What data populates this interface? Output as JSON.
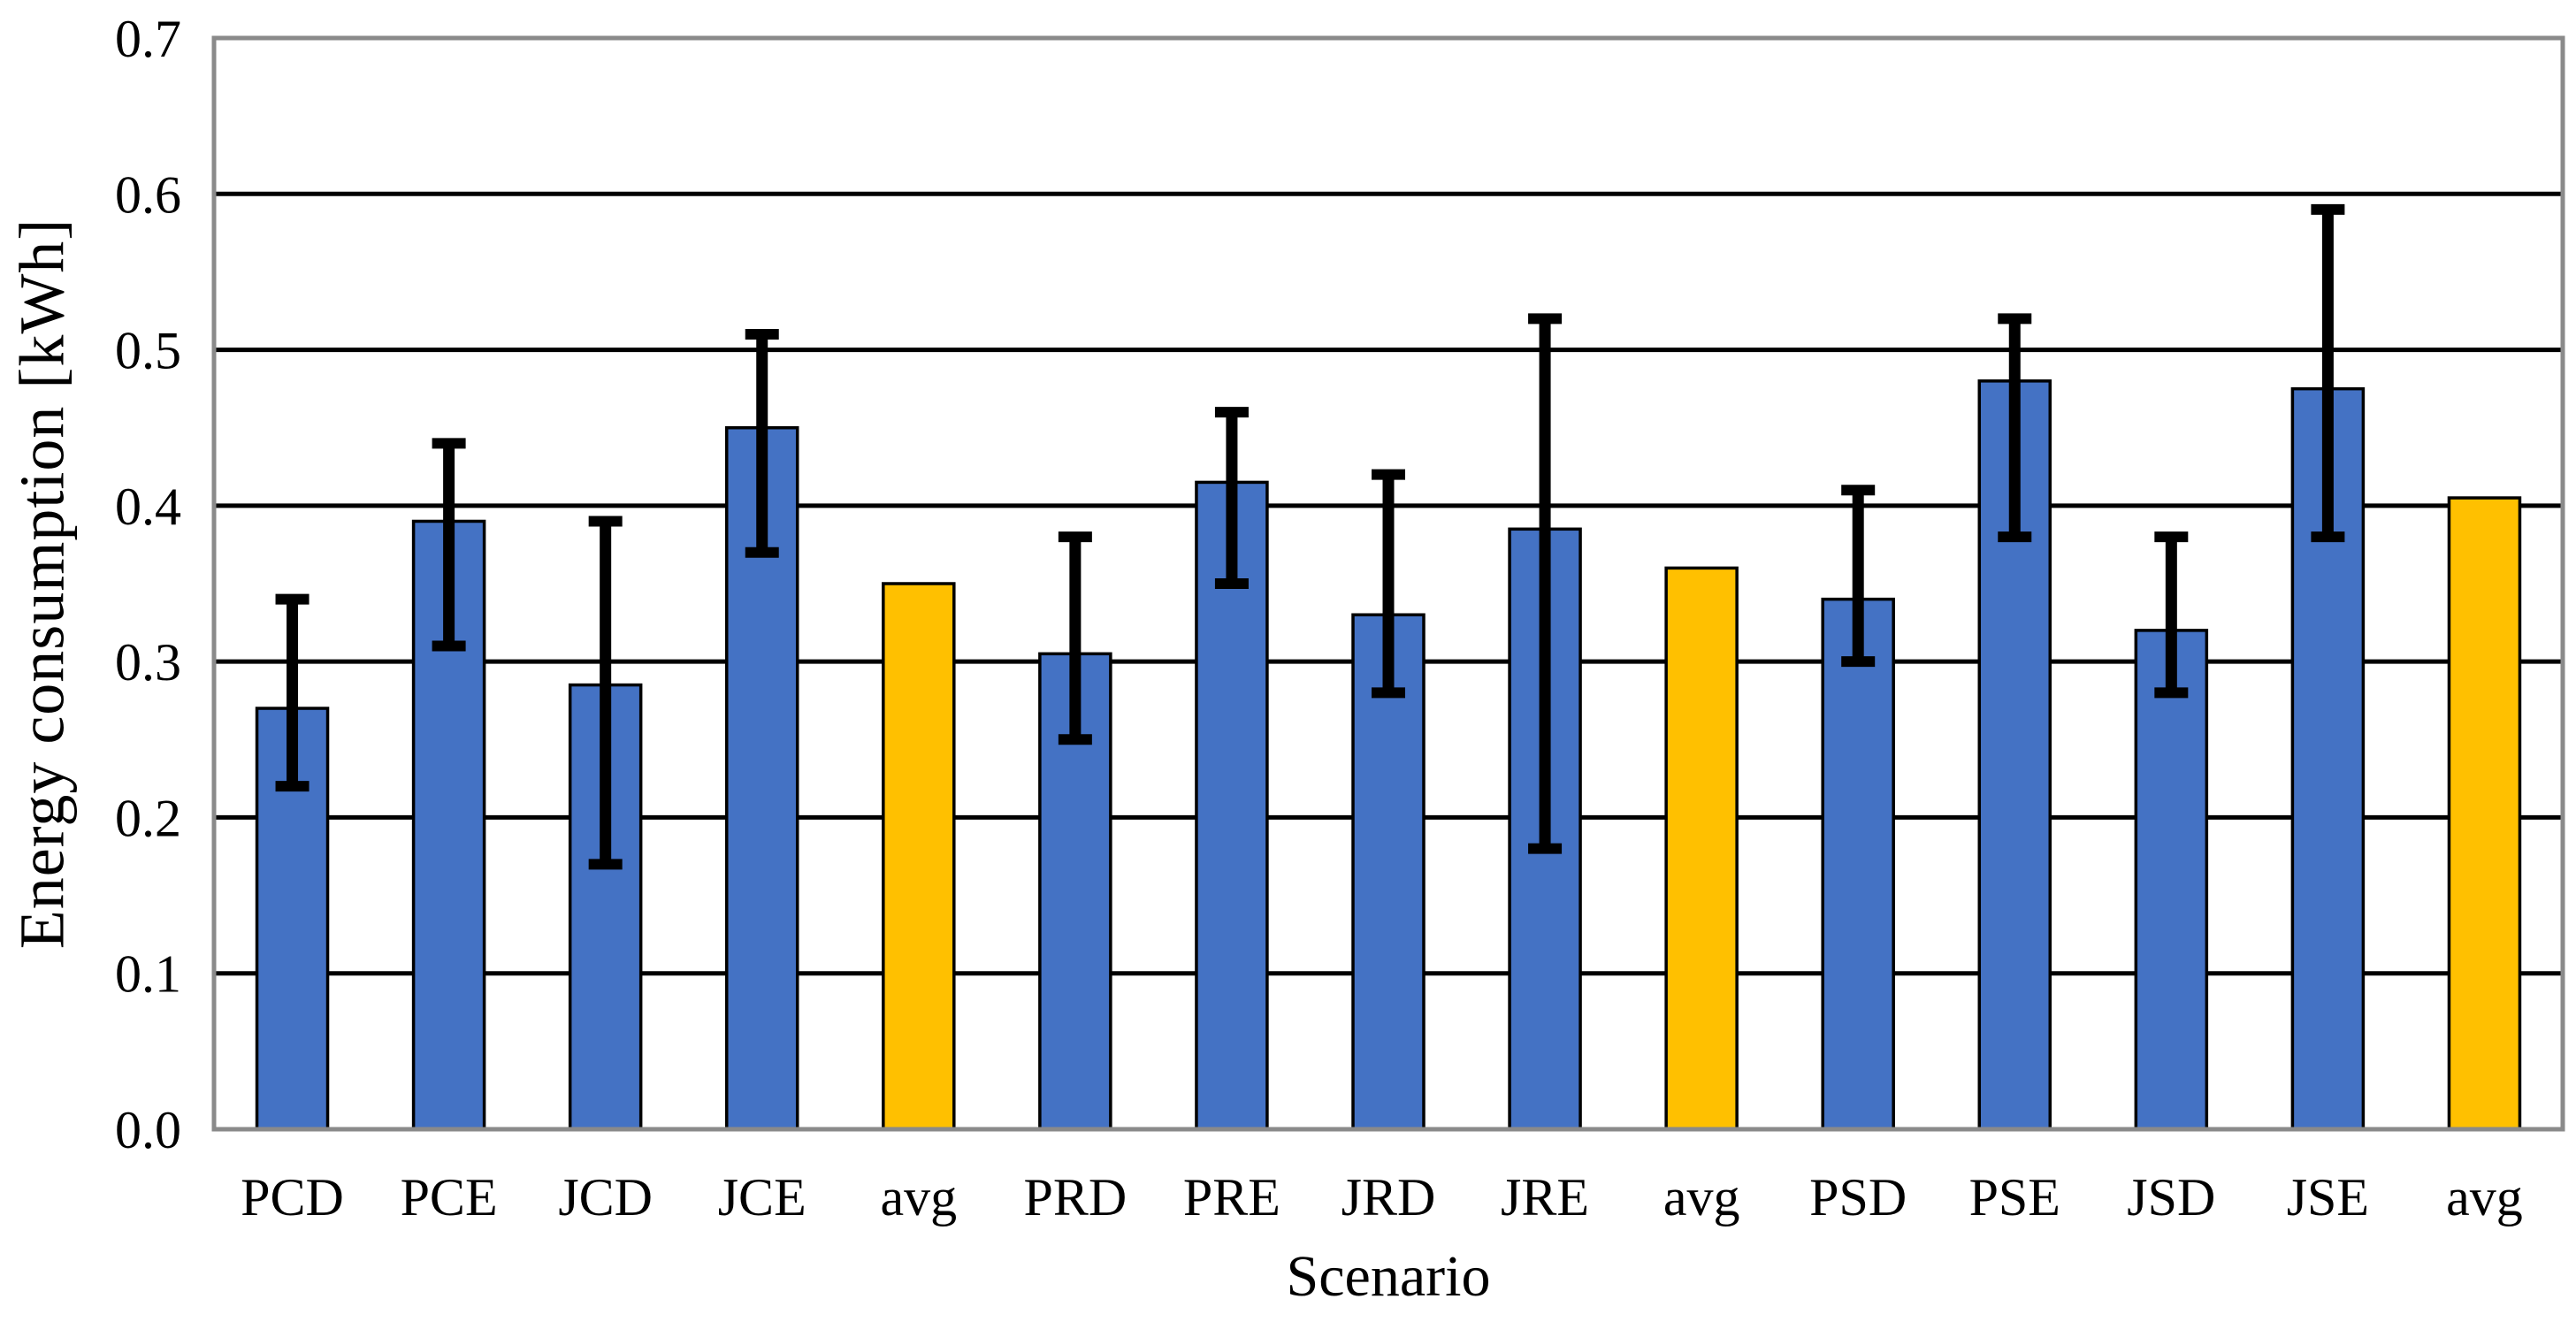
{
  "chart_data": {
    "type": "bar",
    "title": "",
    "xlabel": "Scenario",
    "ylabel": "Energy consumption [kWh]",
    "ylim": [
      0.0,
      0.7
    ],
    "ytick_step": 0.1,
    "ytick_labels": [
      "0.0",
      "0.1",
      "0.2",
      "0.3",
      "0.4",
      "0.5",
      "0.6",
      "0.7"
    ],
    "grid": "horizontal-black-lines",
    "legend": "none",
    "categories": [
      "PCD",
      "PCE",
      "JCD",
      "JCE",
      "avg",
      "PRD",
      "PRE",
      "JRD",
      "JRE",
      "avg",
      "PSD",
      "PSE",
      "JSD",
      "JSE",
      "avg"
    ],
    "values": [
      0.27,
      0.39,
      0.285,
      0.45,
      0.35,
      0.305,
      0.415,
      0.33,
      0.385,
      0.36,
      0.34,
      0.48,
      0.32,
      0.475,
      0.405
    ],
    "error_low": [
      0.22,
      0.31,
      0.17,
      0.37,
      null,
      0.25,
      0.35,
      0.28,
      0.18,
      null,
      0.3,
      0.38,
      0.28,
      0.38,
      null
    ],
    "error_high": [
      0.34,
      0.44,
      0.39,
      0.51,
      null,
      0.38,
      0.46,
      0.42,
      0.52,
      null,
      0.41,
      0.52,
      0.38,
      0.59,
      null
    ],
    "bar_roles": [
      "data",
      "data",
      "data",
      "data",
      "average",
      "data",
      "data",
      "data",
      "data",
      "average",
      "data",
      "data",
      "data",
      "data",
      "average"
    ],
    "colors": {
      "data_bar": "#4472C4",
      "average_bar": "#FFC000",
      "bar_outline": "#000000",
      "error_bar": "#000000",
      "gridline": "#000000",
      "plot_border": "#8A8A8A",
      "text": "#000000",
      "background": "#FFFFFF"
    }
  }
}
